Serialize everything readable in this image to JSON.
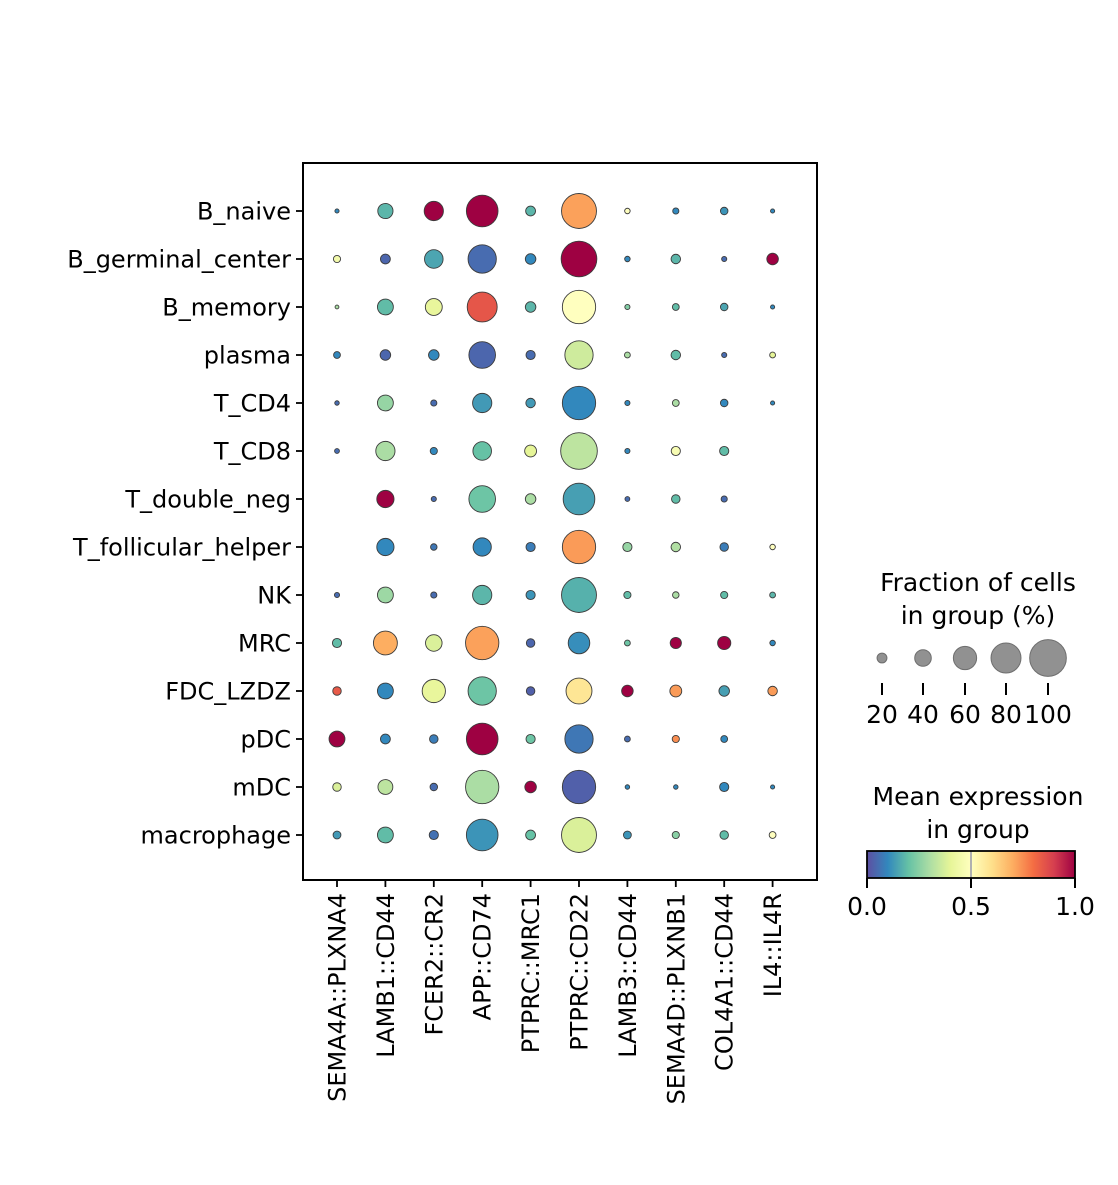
{
  "chart_data": {
    "type": "dotplot",
    "title": "",
    "columns": [
      "SEMA4A::PLXNA4",
      "LAMB1::CD44",
      "FCER2::CR2",
      "APP::CD74",
      "PTPRC::MRC1",
      "PTPRC::CD22",
      "LAMB3::CD44",
      "SEMA4D::PLXNB1",
      "COL4A1::CD44",
      "IL4::IL4R"
    ],
    "rows": [
      "B_naive",
      "B_germinal_center",
      "B_memory",
      "plasma",
      "T_CD4",
      "T_CD8",
      "T_double_neg",
      "T_follicular_helper",
      "NK",
      "MRC",
      "FDC_LZDZ",
      "pDC",
      "mDC",
      "macrophage"
    ],
    "fraction_pct": [
      [
        3,
        36,
        48,
        85,
        20,
        95,
        7,
        9,
        13,
        3
      ],
      [
        12,
        20,
        46,
        75,
        22,
        97,
        7,
        19,
        6,
        25
      ],
      [
        2,
        38,
        41,
        80,
        22,
        90,
        6,
        11,
        13,
        3
      ],
      [
        11,
        22,
        22,
        70,
        18,
        75,
        8,
        19,
        6,
        8
      ],
      [
        4,
        38,
        9,
        48,
        19,
        90,
        6,
        11,
        13,
        3
      ],
      [
        5,
        48,
        12,
        46,
        26,
        100,
        6,
        18,
        18,
        0
      ],
      [
        0,
        42,
        6,
        70,
        22,
        85,
        5,
        16,
        9,
        0
      ],
      [
        0,
        42,
        10,
        45,
        18,
        90,
        18,
        19,
        16,
        7
      ],
      [
        6,
        38,
        9,
        48,
        18,
        95,
        12,
        10,
        12,
        8
      ],
      [
        18,
        62,
        40,
        90,
        16,
        55,
        8,
        24,
        30,
        7
      ],
      [
        16,
        38,
        60,
        75,
        16,
        68,
        25,
        26,
        22,
        19
      ],
      [
        38,
        20,
        16,
        85,
        18,
        75,
        8,
        12,
        11,
        0
      ],
      [
        16,
        35,
        13,
        90,
        25,
        90,
        4,
        4,
        18,
        3
      ],
      [
        14,
        38,
        18,
        85,
        20,
        95,
        14,
        12,
        16,
        11
      ]
    ],
    "mean_expression": [
      [
        0.1,
        0.18,
        1.0,
        1.0,
        0.18,
        0.72,
        0.5,
        0.1,
        0.12,
        0.1
      ],
      [
        0.45,
        0.04,
        0.15,
        0.05,
        0.1,
        1.0,
        0.1,
        0.18,
        0.05,
        1.0
      ],
      [
        0.3,
        0.19,
        0.41,
        0.85,
        0.18,
        0.5,
        0.24,
        0.19,
        0.15,
        0.1
      ],
      [
        0.1,
        0.04,
        0.1,
        0.04,
        0.05,
        0.36,
        0.3,
        0.19,
        0.05,
        0.4
      ],
      [
        0.05,
        0.27,
        0.05,
        0.13,
        0.13,
        0.1,
        0.1,
        0.3,
        0.1,
        0.1
      ],
      [
        0.05,
        0.3,
        0.1,
        0.2,
        0.4,
        0.33,
        0.1,
        0.47,
        0.19,
        0.0
      ],
      [
        0.0,
        1.0,
        0.05,
        0.21,
        0.3,
        0.14,
        0.05,
        0.19,
        0.05,
        0.0
      ],
      [
        0.0,
        0.1,
        0.07,
        0.1,
        0.08,
        0.73,
        0.27,
        0.31,
        0.08,
        0.5
      ],
      [
        0.05,
        0.28,
        0.05,
        0.18,
        0.12,
        0.17,
        0.19,
        0.3,
        0.19,
        0.18
      ],
      [
        0.19,
        0.7,
        0.38,
        0.72,
        0.04,
        0.11,
        0.21,
        1.0,
        1.0,
        0.1
      ],
      [
        0.84,
        0.1,
        0.41,
        0.21,
        0.03,
        0.58,
        1.0,
        0.73,
        0.14,
        0.73
      ],
      [
        1.0,
        0.1,
        0.08,
        1.0,
        0.21,
        0.07,
        0.05,
        0.75,
        0.1,
        0.0
      ],
      [
        0.38,
        0.33,
        0.05,
        0.3,
        1.0,
        0.03,
        0.1,
        0.1,
        0.1,
        0.1
      ],
      [
        0.13,
        0.19,
        0.06,
        0.12,
        0.2,
        0.38,
        0.12,
        0.25,
        0.19,
        0.5
      ]
    ],
    "size_legend": {
      "title_lines": [
        "Fraction of cells",
        "in group (%)"
      ],
      "values": [
        "20",
        "40",
        "60",
        "80",
        "100"
      ]
    },
    "color_legend": {
      "title_lines": [
        "Mean expression",
        "in group"
      ],
      "ticks": [
        "0.0",
        "0.5",
        "1.0"
      ],
      "tick_values": [
        0,
        0.5,
        1
      ]
    },
    "colormap": {
      "name": "Spectral_r",
      "anchors": [
        "#5e4fa2",
        "#3288bd",
        "#66c2a5",
        "#abdda4",
        "#e6f598",
        "#ffffbf",
        "#fee08b",
        "#fdae61",
        "#f46d43",
        "#d53e4f",
        "#9e0142"
      ]
    },
    "layout_hints": {
      "grid": "off",
      "x_tick_rotation": 90,
      "legend_position": "right",
      "dot_size_range_pct": [
        0,
        100
      ]
    },
    "style": {
      "background": "#ffffff",
      "axis_color": "#000000",
      "dot_edge_color": "#3c3c3c",
      "legend_dot_fill": "#919191",
      "legend_dot_edge": "#6e6e6e",
      "colorbar_mid_tick_color": "#b0b0b0"
    }
  }
}
